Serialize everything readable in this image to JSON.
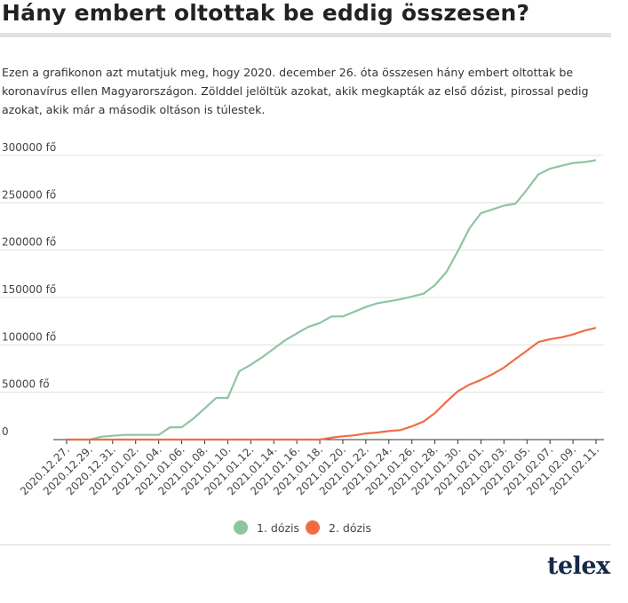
{
  "title": "Hány embert oltottak be eddig összesen?",
  "description": "Ezen a grafikonon azt mutatjuk meg, hogy 2020. december 26. óta összesen hány embert oltottak be koronavírus ellen Magyarországon. Zölddel jelöltük azokat, akik megkapták az első dózist, pirossal pedig azokat, akik már a második oltáson is túlestek.",
  "logo": "telex",
  "colors": {
    "dose1": "#8fc4a2",
    "dose2": "#f06d43",
    "grid": "#e0e0e0",
    "axis": "#333333"
  },
  "chart_data": {
    "type": "line",
    "x": [
      "2020.12.27.",
      "2020.12.28.",
      "2020.12.29.",
      "2020.12.30.",
      "2020.12.31.",
      "2021.01.01.",
      "2021.01.02.",
      "2021.01.03.",
      "2021.01.04.",
      "2021.01.05.",
      "2021.01.06.",
      "2021.01.07.",
      "2021.01.08.",
      "2021.01.09.",
      "2021.01.10.",
      "2021.01.11.",
      "2021.01.12.",
      "2021.01.13.",
      "2021.01.14.",
      "2021.01.15.",
      "2021.01.16.",
      "2021.01.17.",
      "2021.01.18.",
      "2021.01.19.",
      "2021.01.20.",
      "2021.01.21.",
      "2021.01.22.",
      "2021.01.23.",
      "2021.01.24.",
      "2021.01.25.",
      "2021.01.26.",
      "2021.01.27.",
      "2021.01.28.",
      "2021.01.29.",
      "2021.01.30.",
      "2021.01.31.",
      "2021.02.01.",
      "2021.02.02.",
      "2021.02.03.",
      "2021.02.04.",
      "2021.02.05.",
      "2021.02.06.",
      "2021.02.07.",
      "2021.02.08.",
      "2021.02.09.",
      "2021.02.10.",
      "2021.02.11."
    ],
    "x_tick_labels": [
      "2020.12.27.",
      "2020.12.29.",
      "2020.12.31.",
      "2021.01.02.",
      "2021.01.04.",
      "2021.01.06.",
      "2021.01.08.",
      "2021.01.10.",
      "2021.01.12.",
      "2021.01.14.",
      "2021.01.16.",
      "2021.01.18.",
      "2021.01.20.",
      "2021.01.22.",
      "2021.01.24.",
      "2021.01.26.",
      "2021.01.28.",
      "2021.01.30.",
      "2021.02.01.",
      "2021.02.03.",
      "2021.02.05.",
      "2021.02.07.",
      "2021.02.09.",
      "2021.02.11."
    ],
    "y_tick_labels": [
      "0",
      "50000 fő",
      "100000 fő",
      "150000 fő",
      "200000 fő",
      "250000 fő",
      "300000 fő"
    ],
    "ylim": [
      0,
      300000
    ],
    "grid": true,
    "legend_position": "bottom",
    "series": [
      {
        "name": "1. dózis",
        "color": "#8fc4a2",
        "values": [
          0,
          0,
          0,
          3000,
          4000,
          5000,
          5000,
          5000,
          5000,
          13000,
          13000,
          22000,
          33000,
          44000,
          44000,
          72000,
          79000,
          87000,
          96000,
          105000,
          112000,
          119000,
          123000,
          130000,
          130000,
          135000,
          140000,
          144000,
          146000,
          148000,
          151000,
          154000,
          163000,
          177000,
          199000,
          223000,
          239000,
          243000,
          247000,
          249000,
          264000,
          280000,
          286000,
          289000,
          292000,
          293000,
          295000
        ]
      },
      {
        "name": "2. dózis",
        "color": "#f06d43",
        "values": [
          0,
          0,
          0,
          0,
          0,
          0,
          0,
          0,
          0,
          0,
          0,
          0,
          0,
          0,
          0,
          0,
          0,
          0,
          0,
          0,
          0,
          0,
          0,
          2000,
          3500,
          4500,
          6500,
          7500,
          9000,
          10000,
          14000,
          19000,
          28000,
          40000,
          51000,
          58000,
          63000,
          69000,
          76000,
          85000,
          94000,
          103000,
          106000,
          108000,
          111000,
          115000,
          118000
        ]
      }
    ]
  }
}
